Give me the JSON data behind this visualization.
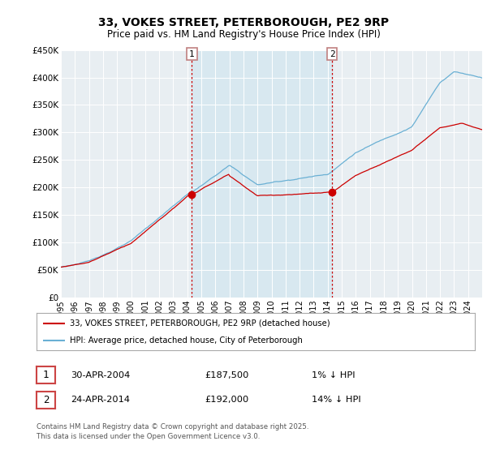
{
  "title_line1": "33, VOKES STREET, PETERBOROUGH, PE2 9RP",
  "title_line2": "Price paid vs. HM Land Registry's House Price Index (HPI)",
  "ylim": [
    0,
    450000
  ],
  "yticks": [
    0,
    50000,
    100000,
    150000,
    200000,
    250000,
    300000,
    350000,
    400000,
    450000
  ],
  "ytick_labels": [
    "£0",
    "£50K",
    "£100K",
    "£150K",
    "£200K",
    "£250K",
    "£300K",
    "£350K",
    "£400K",
    "£450K"
  ],
  "hpi_color": "#6ab0d4",
  "price_color": "#cc0000",
  "vline_color": "#cc0000",
  "fill_color": "#d8e8f0",
  "sale1_date": 2004.33,
  "sale1_price": 187500,
  "sale1_label": "1",
  "sale2_date": 2014.32,
  "sale2_price": 192000,
  "sale2_label": "2",
  "legend_line1": "33, VOKES STREET, PETERBOROUGH, PE2 9RP (detached house)",
  "legend_line2": "HPI: Average price, detached house, City of Peterborough",
  "table_row1": [
    "1",
    "30-APR-2004",
    "£187,500",
    "1% ↓ HPI"
  ],
  "table_row2": [
    "2",
    "24-APR-2014",
    "£192,000",
    "14% ↓ HPI"
  ],
  "footer": "Contains HM Land Registry data © Crown copyright and database right 2025.\nThis data is licensed under the Open Government Licence v3.0.",
  "bg_color": "#ffffff",
  "plot_bg_color": "#e8eef2",
  "xmin": 1995,
  "xmax": 2025.0,
  "xtick_start": 1995,
  "xtick_end": 2025
}
